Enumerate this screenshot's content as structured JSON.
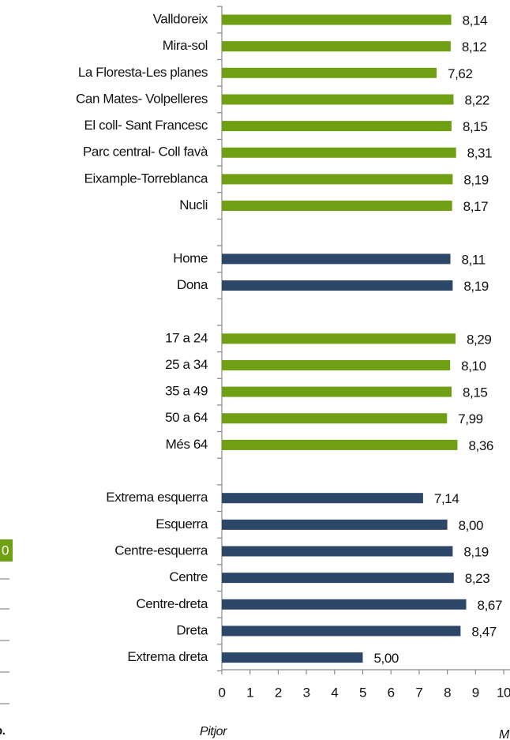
{
  "chart_data": {
    "type": "bar",
    "orientation": "horizontal",
    "categories": [
      "Valldoreix",
      "Mira-sol",
      "La Floresta-Les planes",
      "Can Mates- Volpelleres",
      "El coll- Sant Francesc",
      "Parc central- Coll favà",
      "Eixample-Torreblanca",
      "Nucli",
      null,
      "Home",
      "Dona",
      null,
      "17 a 24",
      "25 a 34",
      "35 a 49",
      "50 a 64",
      "Més 64",
      null,
      "Extrema esquerra",
      "Esquerra",
      "Centre-esquerra",
      "Centre",
      "Centre-dreta",
      "Dreta",
      "Extrema dreta"
    ],
    "values": [
      8.14,
      8.12,
      7.62,
      8.22,
      8.15,
      8.31,
      8.19,
      8.17,
      null,
      8.11,
      8.19,
      null,
      8.29,
      8.1,
      8.15,
      7.99,
      8.36,
      null,
      7.14,
      8.0,
      8.19,
      8.23,
      8.67,
      8.47,
      5.0
    ],
    "value_labels": [
      "8,14",
      "8,12",
      "7,62",
      "8,22",
      "8,15",
      "8,31",
      "8,19",
      "8,17",
      null,
      "8,11",
      "8,19",
      null,
      "8,29",
      "8,10",
      "8,15",
      "7,99",
      "8,36",
      null,
      "7,14",
      "8,00",
      "8,19",
      "8,23",
      "8,67",
      "8,47",
      "5,00"
    ],
    "colors": [
      "#6f9f12",
      "#6f9f12",
      "#6f9f12",
      "#6f9f12",
      "#6f9f12",
      "#6f9f12",
      "#6f9f12",
      "#6f9f12",
      null,
      "#2c4768",
      "#2c4768",
      null,
      "#6f9f12",
      "#6f9f12",
      "#6f9f12",
      "#6f9f12",
      "#6f9f12",
      null,
      "#2c4768",
      "#2c4768",
      "#2c4768",
      "#2c4768",
      "#2c4768",
      "#2c4768",
      "#2c4768"
    ],
    "xlim": [
      0,
      10
    ],
    "xticks": [
      0,
      1,
      2,
      3,
      4,
      5,
      6,
      7,
      8,
      9,
      10
    ],
    "axis_labels": [
      "Pitjor",
      "M"
    ],
    "fragments": [
      "0",
      "p."
    ]
  }
}
